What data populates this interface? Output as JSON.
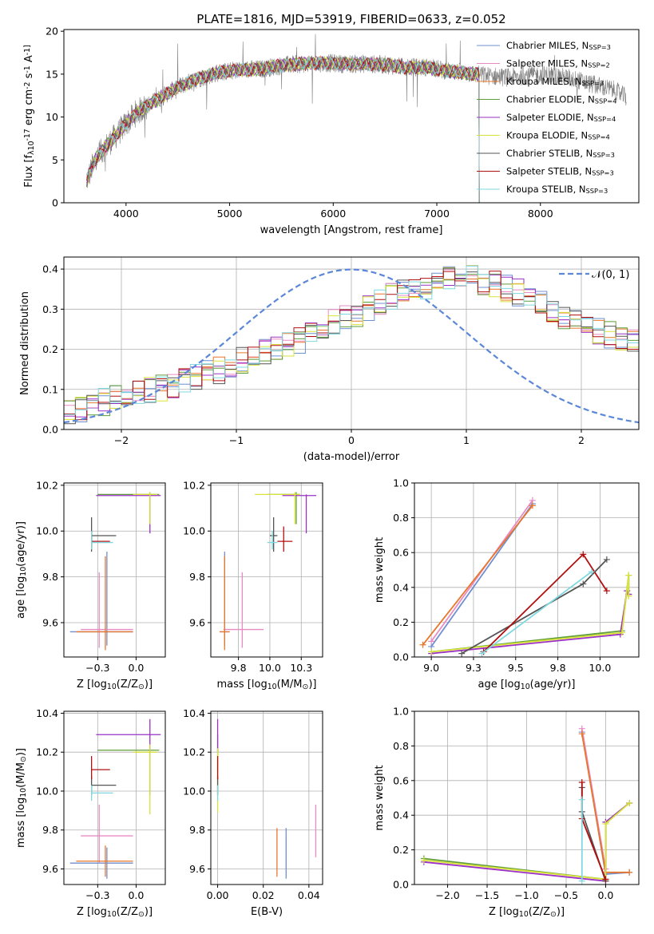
{
  "title": "PLATE=1816, MJD=53919, FIBERID=0633, z=0.052",
  "colors": [
    "#6f8fd0",
    "#e88bc3",
    "#e8772b",
    "#5f9e3a",
    "#9b30c6",
    "#d9e23a",
    "#555555",
    "#b01010",
    "#7fd8e0"
  ],
  "legend": [
    "Chabrier MILES, N$SSP=3",
    "Salpeter MILES, N$SSP=2",
    "Kroupa MILES, N$SSP=3",
    "Chabrier ELODIE, N$SSP=4",
    "Salpeter ELODIE, N$SSP=4",
    "Kroupa ELODIE, N$SSP=4",
    "Chabrier STELIB, N$SSP=3",
    "Salpeter STELIB, N$SSP=3",
    "Kroupa STELIB, N$SSP=3"
  ],
  "legend2": "𝒩(0, 1)",
  "chart_data": [
    {
      "type": "line",
      "name": "spectrum",
      "xlabel": "wavelength [Angstrom, rest frame]",
      "ylabel": "Flux [f$λ10$^-17 erg cm$^-2 s$^-1 A$^-1]",
      "xlim": [
        3400,
        8950
      ],
      "ylim": [
        0,
        20.2
      ],
      "xticks": [
        4000,
        5000,
        6000,
        7000,
        8000
      ],
      "yticks": [
        0,
        5,
        10,
        15,
        20
      ],
      "continuum": [
        [
          3620,
          2.5
        ],
        [
          3700,
          5
        ],
        [
          3800,
          6.5
        ],
        [
          3900,
          7.8
        ],
        [
          4000,
          9.2
        ],
        [
          4100,
          10.5
        ],
        [
          4200,
          11.3
        ],
        [
          4300,
          12.0
        ],
        [
          4500,
          13.5
        ],
        [
          4700,
          14.5
        ],
        [
          4900,
          15.2
        ],
        [
          5100,
          15.5
        ],
        [
          5300,
          15.6
        ],
        [
          5500,
          16.0
        ],
        [
          5700,
          16.2
        ],
        [
          5900,
          16.3
        ],
        [
          6100,
          16.2
        ],
        [
          6300,
          16.2
        ],
        [
          6500,
          16.1
        ],
        [
          6700,
          15.8
        ],
        [
          6900,
          15.8
        ],
        [
          7100,
          15.4
        ],
        [
          7300,
          15.1
        ],
        [
          7500,
          14.8
        ],
        [
          7700,
          14.6
        ],
        [
          7900,
          14.9
        ],
        [
          8100,
          14.9
        ],
        [
          8300,
          14.5
        ],
        [
          8500,
          13.8
        ],
        [
          8700,
          13.2
        ],
        [
          8830,
          12.3
        ]
      ],
      "model_cutoff": 7410
    },
    {
      "type": "histogram",
      "name": "residuals",
      "xlabel": "(data-model)/error",
      "ylabel": "Normed distribution",
      "xlim": [
        -2.5,
        2.5
      ],
      "ylim": [
        0,
        0.43
      ],
      "xticks": [
        -2,
        -1,
        0,
        1,
        2
      ],
      "yticks": [
        0.0,
        0.1,
        0.2,
        0.3,
        0.4
      ],
      "bin_width": 0.1,
      "bins_start": -2.5,
      "base_density": [
        0.042,
        0.045,
        0.058,
        0.068,
        0.08,
        0.09,
        0.097,
        0.1,
        0.105,
        0.112,
        0.12,
        0.128,
        0.138,
        0.148,
        0.16,
        0.175,
        0.185,
        0.198,
        0.205,
        0.21,
        0.225,
        0.235,
        0.255,
        0.27,
        0.28,
        0.29,
        0.305,
        0.318,
        0.33,
        0.342,
        0.35,
        0.36,
        0.368,
        0.372,
        0.378,
        0.375,
        0.37,
        0.36,
        0.352,
        0.342,
        0.325,
        0.312,
        0.298,
        0.285,
        0.27,
        0.258,
        0.245,
        0.235,
        0.225,
        0.218,
        0.21,
        0.2,
        0.188,
        0.172,
        0.16,
        0.148,
        0.135,
        0.125,
        0.115,
        0.108,
        0.1,
        0.095,
        0.09,
        0.085,
        0.08,
        0.075,
        0.07,
        0.066,
        0.062,
        0.058
      ],
      "gaussian_label": "𝒩(0, 1)"
    },
    {
      "type": "errorbar",
      "name": "age-vs-Z",
      "xlabel": "Z [log$10(Z/Z$⊙)]",
      "ylabel": "age  [log$10(age/yr)]",
      "xlim": [
        -0.47,
        0.19
      ],
      "ylim": [
        9.45,
        10.21
      ],
      "xticks": [
        -0.25,
        0.0
      ],
      "yticks": [
        9.6,
        9.8,
        10.0,
        10.2
      ],
      "points": [
        {
          "c": 0,
          "x": -0.19,
          "y": 9.56,
          "xl": -0.43,
          "xh": -0.02,
          "yl": 9.5,
          "yh": 9.91
        },
        {
          "c": 1,
          "x": -0.24,
          "y": 9.57,
          "xl": -0.36,
          "xh": -0.02,
          "yl": 9.49,
          "yh": 9.82
        },
        {
          "c": 2,
          "x": -0.2,
          "y": 9.56,
          "xl": -0.39,
          "xh": -0.02,
          "yl": 9.48,
          "yh": 9.89
        },
        {
          "c": 3,
          "x": 0.09,
          "y": 10.16,
          "xl": -0.25,
          "xh": 0.15,
          "yl": 10.03,
          "yh": 10.17
        },
        {
          "c": 4,
          "x": 0.09,
          "y": 10.155,
          "xl": -0.26,
          "xh": 0.16,
          "yl": 9.99,
          "yh": 10.16
        },
        {
          "c": 5,
          "x": 0.09,
          "y": 10.16,
          "xl": -0.02,
          "xh": 0.14,
          "yl": 10.03,
          "yh": 10.17
        },
        {
          "c": 6,
          "x": -0.29,
          "y": 9.98,
          "xl": -0.29,
          "xh": -0.13,
          "yl": 9.91,
          "yh": 10.06
        },
        {
          "c": 7,
          "x": -0.29,
          "y": 9.955,
          "xl": -0.29,
          "xh": -0.17,
          "yl": 9.93,
          "yh": 10.0
        },
        {
          "c": 8,
          "x": -0.29,
          "y": 9.95,
          "xl": -0.29,
          "xh": -0.15,
          "yl": 9.92,
          "yh": 10.0
        }
      ]
    },
    {
      "type": "errorbar",
      "name": "age-vs-mass",
      "xlabel": "mass [log$10(M/M$⊙)]",
      "ylabel": "",
      "xlim": [
        9.53,
        10.42
      ],
      "ylim": [
        9.45,
        10.21
      ],
      "xticks": [
        9.75,
        10.0,
        10.25
      ],
      "yticks": [
        9.6,
        9.8,
        10.0,
        10.2
      ],
      "points": [
        {
          "c": 0,
          "x": 9.64,
          "y": 9.56,
          "xl": 9.6,
          "xh": 9.68,
          "yl": 9.5,
          "yh": 9.91
        },
        {
          "c": 1,
          "x": 9.78,
          "y": 9.57,
          "xl": 9.63,
          "xh": 9.95,
          "yl": 9.49,
          "yh": 9.82
        },
        {
          "c": 2,
          "x": 9.64,
          "y": 9.56,
          "xl": 9.6,
          "xh": 9.68,
          "yl": 9.48,
          "yh": 9.89
        },
        {
          "c": 3,
          "x": 10.21,
          "y": 10.16,
          "xl": 9.98,
          "xh": 10.24,
          "yl": 10.03,
          "yh": 10.17
        },
        {
          "c": 4,
          "x": 10.29,
          "y": 10.155,
          "xl": 10.1,
          "xh": 10.37,
          "yl": 9.99,
          "yh": 10.16
        },
        {
          "c": 5,
          "x": 10.2,
          "y": 10.16,
          "xl": 9.88,
          "xh": 10.24,
          "yl": 10.03,
          "yh": 10.17
        },
        {
          "c": 6,
          "x": 10.03,
          "y": 9.98,
          "xl": 10.0,
          "xh": 10.06,
          "yl": 9.91,
          "yh": 10.06
        },
        {
          "c": 7,
          "x": 10.11,
          "y": 9.955,
          "xl": 10.06,
          "xh": 10.18,
          "yl": 9.91,
          "yh": 10.02
        },
        {
          "c": 8,
          "x": 10.02,
          "y": 9.95,
          "xl": 9.98,
          "xh": 10.06,
          "yl": 9.92,
          "yh": 10.0
        }
      ]
    },
    {
      "type": "line",
      "name": "mass-weight-vs-age",
      "xlabel": "age  [log$10(age/yr)]",
      "ylabel": "mass weight",
      "xlim": [
        8.9,
        10.23
      ],
      "ylim": [
        0,
        1.0
      ],
      "xticks": [
        9.0,
        9.25,
        9.5,
        9.75,
        10.0
      ],
      "yticks": [
        0.0,
        0.2,
        0.4,
        0.6,
        0.8,
        1.0
      ],
      "series": [
        {
          "c": 0,
          "points": [
            [
              9.0,
              0.06
            ],
            [
              9.6,
              0.88
            ]
          ]
        },
        {
          "c": 1,
          "points": [
            [
              9.0,
              0.09
            ],
            [
              9.6,
              0.9
            ]
          ]
        },
        {
          "c": 2,
          "points": [
            [
              8.95,
              0.07
            ],
            [
              9.6,
              0.87
            ]
          ]
        },
        {
          "c": 3,
          "points": [
            [
              9.0,
              0.03
            ],
            [
              10.13,
              0.15
            ],
            [
              10.17,
              0.47
            ],
            [
              10.17,
              0.36
            ]
          ]
        },
        {
          "c": 4,
          "points": [
            [
              9.0,
              0.02
            ],
            [
              10.12,
              0.13
            ],
            [
              10.16,
              0.38
            ],
            [
              10.17,
              0.36
            ]
          ]
        },
        {
          "c": 5,
          "points": [
            [
              9.0,
              0.03
            ],
            [
              10.13,
              0.14
            ],
            [
              10.17,
              0.47
            ],
            [
              10.17,
              0.35
            ]
          ]
        },
        {
          "c": 6,
          "points": [
            [
              9.18,
              0.02
            ],
            [
              9.9,
              0.42
            ],
            [
              10.04,
              0.56
            ]
          ]
        },
        {
          "c": 7,
          "points": [
            [
              9.31,
              0.03
            ],
            [
              9.9,
              0.59
            ],
            [
              10.04,
              0.38
            ]
          ]
        },
        {
          "c": 8,
          "points": [
            [
              9.3,
              0.02
            ],
            [
              9.95,
              0.49
            ]
          ]
        }
      ]
    },
    {
      "type": "errorbar",
      "name": "mass-vs-Z",
      "xlabel": "Z [log$10(Z/Z$⊙)]",
      "ylabel": "mass [log$10(M/M$⊙)]",
      "xlim": [
        -0.47,
        0.19
      ],
      "ylim": [
        9.52,
        10.41
      ],
      "xticks": [
        -0.25,
        0.0
      ],
      "yticks": [
        9.6,
        9.8,
        10.0,
        10.2,
        10.4
      ],
      "points": [
        {
          "c": 0,
          "x": -0.19,
          "y": 9.63,
          "xl": -0.43,
          "xh": -0.02,
          "yl": 9.55,
          "yh": 9.71
        },
        {
          "c": 1,
          "x": -0.24,
          "y": 9.77,
          "xl": -0.36,
          "xh": -0.02,
          "yl": 9.63,
          "yh": 9.93
        },
        {
          "c": 2,
          "x": -0.2,
          "y": 9.64,
          "xl": -0.39,
          "xh": -0.02,
          "yl": 9.56,
          "yh": 9.72
        },
        {
          "c": 3,
          "x": 0.09,
          "y": 10.21,
          "xl": -0.25,
          "xh": 0.15,
          "yl": 9.98,
          "yh": 10.24
        },
        {
          "c": 4,
          "x": 0.09,
          "y": 10.29,
          "xl": -0.26,
          "xh": 0.16,
          "yl": 10.2,
          "yh": 10.37
        },
        {
          "c": 5,
          "x": 0.09,
          "y": 10.2,
          "xl": -0.02,
          "xh": 0.14,
          "yl": 9.88,
          "yh": 10.24
        },
        {
          "c": 6,
          "x": -0.29,
          "y": 10.03,
          "xl": -0.29,
          "xh": -0.13,
          "yl": 9.98,
          "yh": 10.08
        },
        {
          "c": 7,
          "x": -0.29,
          "y": 10.11,
          "xl": -0.29,
          "xh": -0.17,
          "yl": 10.06,
          "yh": 10.18
        },
        {
          "c": 8,
          "x": -0.29,
          "y": 9.99,
          "xl": -0.29,
          "xh": -0.15,
          "yl": 9.95,
          "yh": 10.03
        }
      ]
    },
    {
      "type": "errorbar",
      "name": "mass-vs-EBV",
      "xlabel": "E(B-V)",
      "ylabel": "",
      "xlim": [
        -0.003,
        0.046
      ],
      "ylim": [
        9.52,
        10.41
      ],
      "xticks": [
        0.0,
        0.02,
        0.04
      ],
      "yticks": [
        9.6,
        9.8,
        10.0,
        10.2,
        10.4
      ],
      "points": [
        {
          "c": 0,
          "x": 0.03,
          "y": 9.63,
          "xl": 0.03,
          "xh": 0.03,
          "yl": 9.55,
          "yh": 9.81
        },
        {
          "c": 1,
          "x": 0.043,
          "y": 9.77,
          "xl": 0.043,
          "xh": 0.043,
          "yl": 9.66,
          "yh": 9.93
        },
        {
          "c": 2,
          "x": 0.026,
          "y": 9.64,
          "xl": 0.026,
          "xh": 0.026,
          "yl": 9.56,
          "yh": 9.81
        },
        {
          "c": 3,
          "x": 0.0,
          "y": 10.21,
          "xl": 0.0,
          "xh": 0.0,
          "yl": 10.1,
          "yh": 10.29
        },
        {
          "c": 4,
          "x": 0.0,
          "y": 10.29,
          "xl": 0.0,
          "xh": 0.0,
          "yl": 10.2,
          "yh": 10.37
        },
        {
          "c": 5,
          "x": 0.0,
          "y": 10.1,
          "xl": 0.0,
          "xh": 0.0,
          "yl": 9.89,
          "yh": 10.22
        },
        {
          "c": 6,
          "x": 0.0,
          "y": 10.03,
          "xl": 0.0,
          "xh": 0.0,
          "yl": 9.98,
          "yh": 10.08
        },
        {
          "c": 7,
          "x": 0.0,
          "y": 10.11,
          "xl": 0.0,
          "xh": 0.0,
          "yl": 10.06,
          "yh": 10.18
        },
        {
          "c": 8,
          "x": 0.0,
          "y": 9.99,
          "xl": 0.0,
          "xh": 0.0,
          "yl": 9.95,
          "yh": 10.03
        }
      ]
    },
    {
      "type": "line",
      "name": "mass-weight-vs-Z",
      "xlabel": "Z [log$10(Z/Z$⊙)]",
      "ylabel": "mass weight",
      "xlim": [
        -2.42,
        0.42
      ],
      "ylim": [
        0,
        1.0
      ],
      "xticks": [
        -2.0,
        -1.5,
        -1.0,
        -0.5,
        0.0
      ],
      "yticks": [
        0.0,
        0.2,
        0.4,
        0.6,
        0.8,
        1.0
      ],
      "series": [
        {
          "c": 0,
          "points": [
            [
              -0.3,
              0.88
            ],
            [
              0.0,
              0.06
            ],
            [
              0.3,
              0.07
            ]
          ]
        },
        {
          "c": 1,
          "points": [
            [
              -0.3,
              0.9
            ],
            [
              0.0,
              0.09
            ]
          ]
        },
        {
          "c": 2,
          "points": [
            [
              -0.3,
              0.87
            ],
            [
              0.0,
              0.07
            ],
            [
              0.3,
              0.07
            ]
          ]
        },
        {
          "c": 3,
          "points": [
            [
              -2.3,
              0.15
            ],
            [
              0.0,
              0.03
            ],
            [
              0.0,
              0.36
            ],
            [
              0.3,
              0.47
            ]
          ]
        },
        {
          "c": 4,
          "points": [
            [
              -2.3,
              0.13
            ],
            [
              0.0,
              0.02
            ],
            [
              0.0,
              0.36
            ],
            [
              0.3,
              0.47
            ]
          ]
        },
        {
          "c": 5,
          "points": [
            [
              -2.3,
              0.14
            ],
            [
              0.0,
              0.03
            ],
            [
              0.0,
              0.35
            ],
            [
              0.3,
              0.47
            ]
          ]
        },
        {
          "c": 6,
          "points": [
            [
              -0.3,
              0.56
            ],
            [
              -0.3,
              0.42
            ],
            [
              0.0,
              0.02
            ]
          ]
        },
        {
          "c": 7,
          "points": [
            [
              -0.3,
              0.59
            ],
            [
              -0.3,
              0.38
            ],
            [
              0.0,
              0.03
            ]
          ]
        },
        {
          "c": 8,
          "points": [
            [
              -0.3,
              0.49
            ],
            [
              -0.3,
              0.02
            ]
          ]
        }
      ]
    }
  ]
}
